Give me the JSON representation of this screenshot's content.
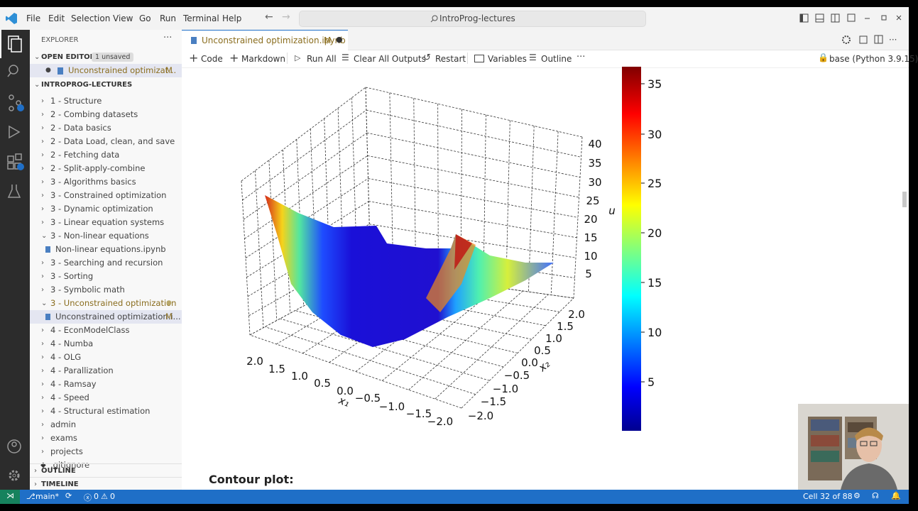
{
  "menu": [
    "File",
    "Edit",
    "Selection",
    "View",
    "Go",
    "Run",
    "Terminal",
    "Help"
  ],
  "search": "IntroProg-lectures",
  "sidebar": {
    "title": "EXPLORER",
    "open_editors": {
      "header": "OPEN EDITORS",
      "badge": "1 unsaved",
      "file": "Unconstrained optimizat...",
      "status": "M"
    },
    "workspace": {
      "header": "INTROPROG-LECTURES",
      "items": [
        "1 - Structure",
        "2 - Combing datasets",
        "2 - Data basics",
        "2 - Data Load, clean, and save",
        "2 - Fetching data",
        "2 - Split-apply-combine",
        "3 - Algorithms basics",
        "3 - Constrained optimization",
        "3 - Dynamic optimization",
        "3 - Linear equation systems",
        "3 - Non-linear equations",
        "Non-linear equations.ipynb",
        "3 - Searching and recursion",
        "3 - Sorting",
        "3 - Symbolic math",
        "3 - Unconstrained optimization",
        "Unconstrained optimization.i...",
        "4 - EconModelClass",
        "4 - Numba",
        "4 - OLG",
        "4 - Parallization",
        "4 - Ramsay",
        "4 - Speed",
        "4 - Structural estimation",
        "admin",
        "exams",
        "projects",
        ".gitignore"
      ],
      "selected_status": "M"
    },
    "outline": "OUTLINE",
    "timeline": "TIMELINE"
  },
  "tab": {
    "name": "Unconstrained optimization.ipynb",
    "status": "M"
  },
  "toolbar": {
    "buttons": [
      "Code",
      "Markdown",
      "Run All",
      "Clear All Outputs",
      "Restart",
      "Variables",
      "Outline"
    ],
    "kernel": "base (Python 3.9.15)"
  },
  "plot": {
    "x1_label": "x₁",
    "x2_label": "x₂",
    "u_label": "u",
    "x1_ticks": [
      "2.0",
      "1.5",
      "1.0",
      "0.5",
      "0.0",
      "−0.5",
      "−1.0",
      "−1.5",
      "−2.0"
    ],
    "x2_ticks": [
      "2.0",
      "1.5",
      "1.0",
      "0.5",
      "0.0",
      "−0.5",
      "−1.0",
      "−1.5",
      "−2.0"
    ],
    "u_ticks": [
      "40",
      "35",
      "30",
      "25",
      "20",
      "15",
      "10",
      "5"
    ],
    "colorbar_ticks": [
      "35",
      "30",
      "25",
      "20",
      "15",
      "10",
      "5"
    ]
  },
  "heading": "Contour plot:",
  "status_bar": {
    "branch": "main*",
    "errors": "0",
    "warnings": "0",
    "cell": "Cell 32 of 88"
  }
}
